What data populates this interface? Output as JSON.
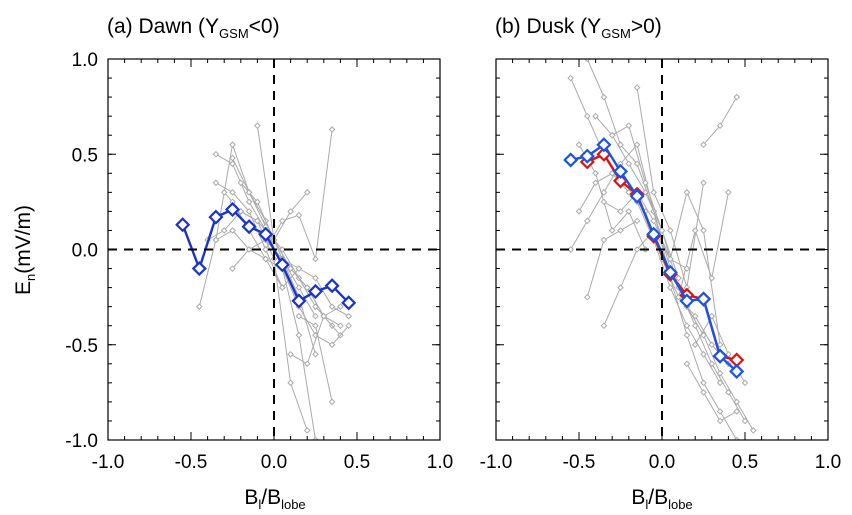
{
  "colors": {
    "background_curves": "#aaaaaa",
    "average_dawn": "#1a33cc",
    "average_dusk": "#1a53e6",
    "average_dusk_alt": "#e01010",
    "axes": "#000000",
    "zero_lines": "#000000"
  },
  "ylabel": {
    "main": "E",
    "sub": "n",
    "rest": "(mV/m)"
  },
  "chart_data": [
    {
      "type": "line",
      "panel": "a",
      "title": {
        "pre": "(a) Dawn (Y",
        "sub": "GSM",
        "post": "<0)"
      },
      "xlabel": {
        "main": "B",
        "sub1": "l",
        "mid": "/B",
        "sub2": "lobe"
      },
      "xlim": [
        -1.0,
        1.0
      ],
      "ylim": [
        -1.0,
        1.0
      ],
      "xticks": [
        "-1.0",
        "-0.5",
        "0.0",
        "0.5",
        "1.0"
      ],
      "yticks": [
        "1.0",
        "0.5",
        "0.0",
        "-0.5",
        "-1.0"
      ],
      "zero_lines": true,
      "series": [
        {
          "role": "average",
          "color": "#1a33cc",
          "x": [
            -0.55,
            -0.45,
            -0.35,
            -0.25,
            -0.15,
            -0.05,
            0.05,
            0.15,
            0.25,
            0.35,
            0.45
          ],
          "y": [
            0.13,
            -0.1,
            0.17,
            0.21,
            0.12,
            0.08,
            -0.08,
            -0.27,
            -0.22,
            -0.19,
            -0.28
          ]
        },
        {
          "role": "event",
          "x": [
            -0.45,
            -0.35,
            -0.25,
            -0.15,
            -0.05,
            0.05,
            0.15,
            0.25
          ],
          "y": [
            -0.3,
            0.05,
            0.55,
            0.3,
            0.15,
            -0.05,
            -0.2,
            -0.35
          ]
        },
        {
          "role": "event",
          "x": [
            -0.35,
            -0.25,
            -0.15,
            -0.05,
            0.05,
            0.15,
            0.25,
            0.35
          ],
          "y": [
            0.5,
            0.45,
            0.25,
            0.1,
            0.0,
            -0.15,
            -0.3,
            -0.4
          ]
        },
        {
          "role": "event",
          "x": [
            -0.3,
            -0.2,
            -0.1,
            0.0,
            0.1,
            0.2,
            0.3,
            0.4
          ],
          "y": [
            0.3,
            0.2,
            0.15,
            0.05,
            -0.1,
            -0.2,
            -0.35,
            -0.45
          ]
        },
        {
          "role": "event",
          "x": [
            -0.35,
            -0.25,
            -0.15,
            -0.05,
            0.05,
            0.15,
            0.25
          ],
          "y": [
            0.05,
            0.1,
            0.0,
            -0.05,
            -0.1,
            -0.45,
            -1.0
          ]
        },
        {
          "role": "event",
          "x": [
            -0.25,
            -0.15,
            -0.05,
            0.05,
            0.15,
            0.25
          ],
          "y": [
            -0.1,
            0.0,
            0.05,
            -0.05,
            -0.25,
            -0.55
          ]
        },
        {
          "role": "event",
          "x": [
            -0.2,
            -0.1,
            0.0,
            0.1,
            0.2,
            0.3,
            0.4
          ],
          "y": [
            0.35,
            0.25,
            0.05,
            -0.1,
            -0.2,
            -0.35,
            -0.4
          ]
        },
        {
          "role": "event",
          "x": [
            -0.4,
            -0.3,
            -0.2,
            -0.1,
            0.0,
            0.1,
            0.2
          ],
          "y": [
            0.05,
            0.1,
            0.2,
            0.15,
            -0.05,
            -0.7,
            -0.95
          ]
        },
        {
          "role": "event",
          "x": [
            -0.25,
            -0.15,
            -0.05,
            0.05,
            0.15,
            0.25,
            0.35,
            0.45
          ],
          "y": [
            0.48,
            0.3,
            0.12,
            -0.1,
            -0.3,
            -0.45,
            -0.5,
            -0.4
          ]
        },
        {
          "role": "event",
          "x": [
            -0.1,
            0.0,
            0.1,
            0.2
          ],
          "y": [
            0.65,
            0.05,
            0.2,
            0.3
          ]
        },
        {
          "role": "event",
          "x": [
            -0.05,
            0.05,
            0.15,
            0.25,
            0.35
          ],
          "y": [
            0.0,
            0.15,
            0.18,
            -0.05,
            0.63
          ]
        },
        {
          "role": "event",
          "x": [
            0.05,
            0.15,
            0.25,
            0.35,
            0.45
          ],
          "y": [
            -0.05,
            -0.1,
            -0.15,
            -0.3,
            -0.35
          ]
        },
        {
          "role": "event",
          "x": [
            0.1,
            0.2,
            0.3,
            0.4
          ],
          "y": [
            -0.55,
            -0.6,
            -0.35,
            -0.3
          ]
        },
        {
          "role": "event",
          "x": [
            0.15,
            0.25,
            0.35
          ],
          "y": [
            -0.35,
            -0.4,
            -0.8
          ]
        },
        {
          "role": "event",
          "x": [
            -0.35,
            -0.25,
            -0.15,
            -0.05,
            0.05,
            0.15
          ],
          "y": [
            0.35,
            0.3,
            0.2,
            0.0,
            -0.2,
            -0.1
          ]
        },
        {
          "role": "event",
          "x": [
            -0.25,
            -0.15,
            -0.05,
            0.05
          ],
          "y": [
            0.25,
            0.1,
            -0.05,
            -0.2
          ]
        }
      ]
    },
    {
      "type": "line",
      "panel": "b",
      "title": {
        "pre": "(b) Dusk (Y",
        "sub": "GSM",
        "post": ">0)"
      },
      "xlabel": {
        "main": "B",
        "sub1": "l",
        "mid": "/B",
        "sub2": "lobe"
      },
      "xlim": [
        -1.0,
        1.0
      ],
      "ylim": [
        -1.0,
        1.0
      ],
      "xticks": [
        "-1.0",
        "-0.5",
        "0.0",
        "0.5",
        "1.0"
      ],
      "yticks": [
        "1.0",
        "0.5",
        "0.0",
        "-0.5",
        "-1.0"
      ],
      "zero_lines": true,
      "series": [
        {
          "role": "average-alt",
          "color": "#e01010",
          "x": [
            -0.45,
            -0.35,
            -0.25,
            -0.15,
            -0.05,
            0.05,
            0.15,
            0.25,
            0.35,
            0.45
          ],
          "y": [
            0.46,
            0.5,
            0.36,
            0.29,
            0.07,
            -0.13,
            -0.24,
            -0.26,
            -0.56,
            -0.58
          ]
        },
        {
          "role": "average",
          "color": "#1a53e6",
          "x": [
            -0.55,
            -0.45,
            -0.35,
            -0.25,
            -0.15,
            -0.05,
            0.05,
            0.15,
            0.25,
            0.35,
            0.45
          ],
          "y": [
            0.47,
            0.49,
            0.55,
            0.41,
            0.28,
            0.08,
            -0.12,
            -0.27,
            -0.26,
            -0.56,
            -0.64
          ]
        },
        {
          "role": "event",
          "x": [
            -0.55,
            -0.45,
            -0.35,
            -0.25,
            -0.15,
            -0.05,
            0.05,
            0.15,
            0.25,
            0.35
          ],
          "y": [
            0.9,
            0.7,
            0.5,
            0.35,
            0.25,
            0.05,
            -0.2,
            -0.4,
            -0.55,
            -0.7
          ]
        },
        {
          "role": "event",
          "x": [
            -0.5,
            -0.4,
            -0.3,
            -0.2,
            -0.1,
            0.0,
            0.1,
            0.2,
            0.3,
            0.4
          ],
          "y": [
            0.2,
            0.35,
            0.4,
            0.3,
            0.2,
            -0.05,
            -0.25,
            -0.35,
            -0.5,
            -0.6
          ]
        },
        {
          "role": "event",
          "x": [
            -0.55,
            -0.45,
            -0.35,
            -0.25,
            -0.15,
            -0.05,
            0.05,
            0.15
          ],
          "y": [
            0.0,
            0.15,
            0.3,
            0.45,
            0.55,
            0.2,
            -0.1,
            -0.3
          ]
        },
        {
          "role": "event",
          "x": [
            -0.45,
            -0.35,
            -0.25,
            -0.15,
            -0.05,
            0.05,
            0.15,
            0.25,
            0.35,
            0.45
          ],
          "y": [
            1.0,
            0.8,
            0.55,
            0.45,
            0.2,
            -0.15,
            -0.45,
            -0.7,
            -0.85,
            -1.0
          ]
        },
        {
          "role": "event",
          "x": [
            -0.35,
            -0.25,
            -0.15,
            -0.05,
            0.05,
            0.15,
            0.25,
            0.35
          ],
          "y": [
            -0.4,
            -0.2,
            0.0,
            0.1,
            -0.05,
            0.3,
            0.1,
            -0.5
          ]
        },
        {
          "role": "event",
          "x": [
            -0.3,
            -0.2,
            -0.1,
            0.0,
            0.1,
            0.2,
            0.3,
            0.4,
            0.5
          ],
          "y": [
            0.6,
            0.45,
            0.3,
            0.1,
            -0.2,
            -0.4,
            -0.6,
            -0.75,
            -0.9
          ]
        },
        {
          "role": "event",
          "x": [
            -0.4,
            -0.3,
            -0.2,
            -0.1,
            0.0,
            0.1
          ],
          "y": [
            0.7,
            0.6,
            0.65,
            0.35,
            0.1,
            -0.15
          ]
        },
        {
          "role": "event",
          "x": [
            -0.15,
            -0.05,
            0.05,
            0.15,
            0.25
          ],
          "y": [
            0.85,
            0.3,
            0.1,
            -0.2,
            0.35
          ]
        },
        {
          "role": "event",
          "x": [
            -0.5,
            -0.4,
            -0.3,
            -0.2,
            -0.1
          ],
          "y": [
            0.55,
            0.4,
            0.1,
            0.2,
            0.0
          ]
        },
        {
          "role": "event",
          "x": [
            0.05,
            0.15,
            0.25,
            0.35,
            0.45,
            0.55
          ],
          "y": [
            -0.1,
            -0.3,
            -0.45,
            -0.65,
            -0.8,
            -0.95
          ]
        },
        {
          "role": "event",
          "x": [
            0.1,
            0.2,
            0.3,
            0.4
          ],
          "y": [
            -0.25,
            0.1,
            -0.15,
            0.3
          ]
        },
        {
          "role": "event",
          "x": [
            0.2,
            0.3,
            0.4,
            0.5
          ],
          "y": [
            -0.5,
            -0.35,
            -0.55,
            -0.7
          ]
        },
        {
          "role": "event",
          "x": [
            0.25,
            0.35,
            0.45
          ],
          "y": [
            0.55,
            0.65,
            0.8
          ]
        },
        {
          "role": "event",
          "x": [
            -0.35,
            -0.25,
            -0.15,
            -0.05,
            0.05,
            0.15
          ],
          "y": [
            0.25,
            0.2,
            0.3,
            0.15,
            -0.05,
            -0.1
          ]
        },
        {
          "role": "event",
          "x": [
            0.15,
            0.25,
            0.35,
            0.45
          ],
          "y": [
            -0.6,
            -0.75,
            -0.9,
            -0.85
          ]
        },
        {
          "role": "event",
          "x": [
            -0.45,
            -0.35,
            -0.25,
            -0.15
          ],
          "y": [
            -0.25,
            0.05,
            0.1,
            0.15
          ]
        }
      ]
    }
  ]
}
